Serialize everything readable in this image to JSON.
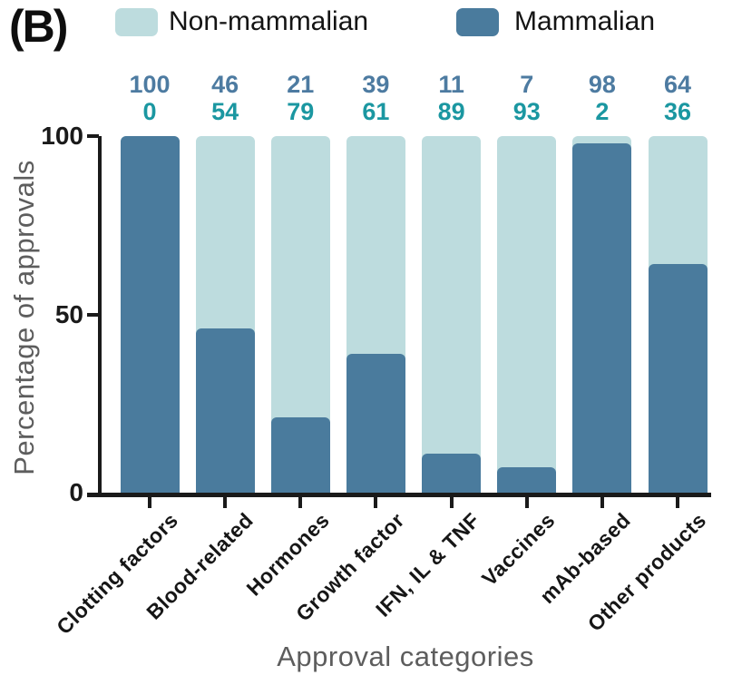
{
  "panel_label": "(B)",
  "legend": {
    "items": [
      {
        "label": "Non-mammalian",
        "color": "#bddcde"
      },
      {
        "label": "Mammalian",
        "color": "#4a7b9d"
      }
    ]
  },
  "chart_data": {
    "type": "bar",
    "stacked": true,
    "title": "",
    "xlabel": "Approval categories",
    "ylabel": "Percentage of approvals",
    "categories": [
      "Clotting factors",
      "Blood-related",
      "Hormones",
      "Growth factor",
      "IFN, IL & TNF",
      "Vaccines",
      "mAb-based",
      "Other products"
    ],
    "series": [
      {
        "name": "Mammalian",
        "color": "#4a7b9d",
        "value_label_color": "#4d7ba1",
        "values": [
          100,
          46,
          21,
          39,
          11,
          7,
          98,
          64
        ]
      },
      {
        "name": "Non-mammalian",
        "color": "#bddcde",
        "value_label_color": "#1b97a1",
        "values": [
          0,
          54,
          79,
          61,
          89,
          93,
          2,
          36
        ]
      }
    ],
    "yticks": [
      0,
      50,
      100
    ],
    "ylim": [
      0,
      100
    ],
    "legend_position": "top",
    "grid": false,
    "axis_color": "#1a1a1a"
  }
}
